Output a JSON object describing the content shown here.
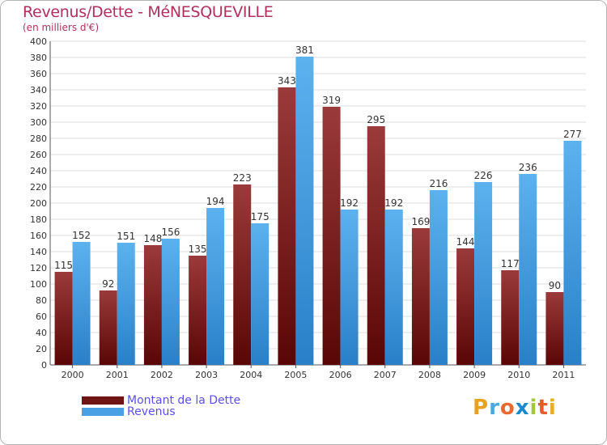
{
  "title": "Revenus/Dette - MéNESQUEVILLE",
  "subtitle": "(en milliers d'€)",
  "legend": [
    {
      "label": "Montant de la Dette",
      "color": "#6e1414"
    },
    {
      "label": "Revenus",
      "color": "#4aa0e4"
    }
  ],
  "logo": {
    "letters": [
      "P",
      "r",
      "o",
      "x",
      "i",
      "t",
      "i"
    ],
    "colors": [
      "#e8a020",
      "#49a8e0",
      "#e86a30",
      "#1a8ad0",
      "#a4c838",
      "#e85a2a",
      "#e8b020"
    ]
  },
  "chart_data": {
    "type": "bar",
    "title": "Revenus/Dette - MéNESQUEVILLE",
    "ylabel": "(en milliers d'€)",
    "xlabel": "",
    "categories": [
      "2000",
      "2001",
      "2002",
      "2003",
      "2004",
      "2005",
      "2006",
      "2007",
      "2008",
      "2009",
      "2010",
      "2011"
    ],
    "series": [
      {
        "name": "Montant de la Dette",
        "color": "#6e1414",
        "values": [
          115,
          92,
          148,
          135,
          223,
          343,
          319,
          295,
          169,
          144,
          117,
          90
        ]
      },
      {
        "name": "Revenus",
        "color": "#4aa0e4",
        "values": [
          152,
          151,
          156,
          194,
          175,
          381,
          192,
          192,
          216,
          226,
          236,
          277
        ]
      }
    ],
    "ylim": [
      0,
      400
    ],
    "ytick_step": 20,
    "grid": true,
    "legend_position": "bottom-left"
  }
}
